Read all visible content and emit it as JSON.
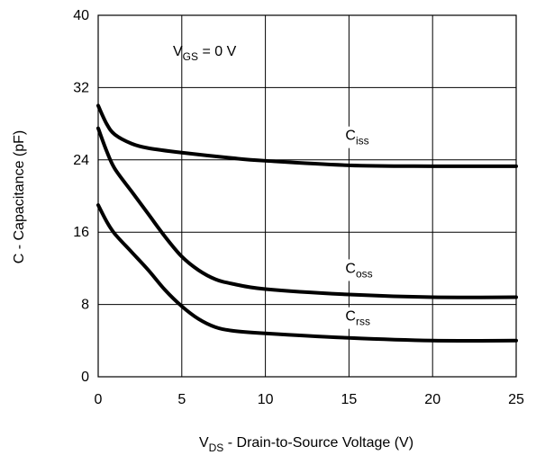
{
  "chart_data": {
    "type": "line",
    "title": "",
    "xlabel": {
      "main": "V",
      "sub": "DS",
      "rest": " - Drain-to-Source Voltage (V)"
    },
    "ylabel": "C - Capacitance (pF)",
    "xlim": [
      0,
      25
    ],
    "ylim": [
      0,
      40
    ],
    "xticks": [
      0,
      5,
      10,
      15,
      20,
      25
    ],
    "yticks": [
      0,
      8,
      16,
      24,
      32,
      40
    ],
    "grid": true,
    "annotation": {
      "main": "V",
      "sub": "GS",
      "rest": " = 0 V"
    },
    "series": [
      {
        "name": "Ciss",
        "label": {
          "main": "C",
          "sub": "iss"
        },
        "x": [
          0,
          0.5,
          1,
          2,
          3,
          5,
          8,
          10,
          15,
          20,
          25
        ],
        "y": [
          30,
          28,
          26.8,
          25.8,
          25.3,
          24.8,
          24.2,
          23.9,
          23.4,
          23.3,
          23.3
        ]
      },
      {
        "name": "Coss",
        "label": {
          "main": "C",
          "sub": "oss"
        },
        "x": [
          0,
          0.5,
          1,
          2,
          3,
          4,
          5,
          6,
          7,
          8,
          10,
          15,
          20,
          25
        ],
        "y": [
          27.5,
          25,
          23,
          20.5,
          18,
          15.5,
          13.3,
          11.8,
          10.8,
          10.3,
          9.7,
          9.1,
          8.8,
          8.8
        ]
      },
      {
        "name": "Crss",
        "label": {
          "main": "C",
          "sub": "rss"
        },
        "x": [
          0,
          0.5,
          1,
          2,
          3,
          4,
          5,
          6,
          7,
          8,
          10,
          15,
          20,
          25
        ],
        "y": [
          19,
          17.2,
          15.8,
          13.8,
          11.8,
          9.6,
          7.8,
          6.4,
          5.5,
          5.1,
          4.8,
          4.3,
          4,
          4
        ]
      }
    ]
  }
}
